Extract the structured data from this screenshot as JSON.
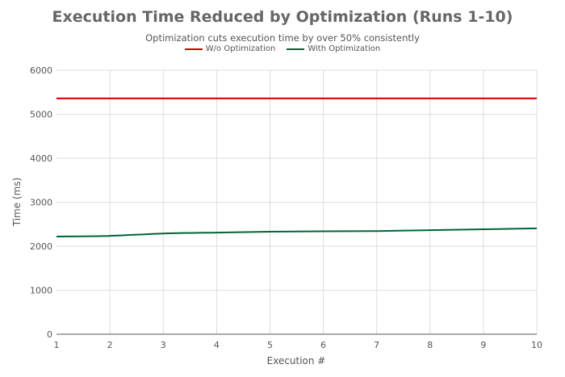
{
  "chart_data": {
    "type": "line",
    "title": "Execution Time Reduced by Optimization (Runs 1-10)",
    "subtitle": "Optimization cuts execution time by over 50% consistently",
    "xlabel": "Execution #",
    "ylabel": "Time (ms)",
    "x": [
      1,
      2,
      3,
      4,
      5,
      6,
      7,
      8,
      9,
      10
    ],
    "xlim": [
      1,
      10
    ],
    "ylim": [
      0,
      6000
    ],
    "yticks": [
      0,
      1000,
      2000,
      3000,
      4000,
      5000,
      6000
    ],
    "grid": true,
    "legend_position": "top-center",
    "series": [
      {
        "name": "W/o Optimization",
        "color": "#cc0000",
        "values": [
          5360,
          5360,
          5360,
          5360,
          5360,
          5360,
          5360,
          5360,
          5360,
          5360
        ]
      },
      {
        "name": "With Optimization",
        "color": "#006633",
        "values": [
          2220,
          2235,
          2290,
          2310,
          2330,
          2340,
          2345,
          2365,
          2385,
          2405
        ]
      }
    ]
  }
}
